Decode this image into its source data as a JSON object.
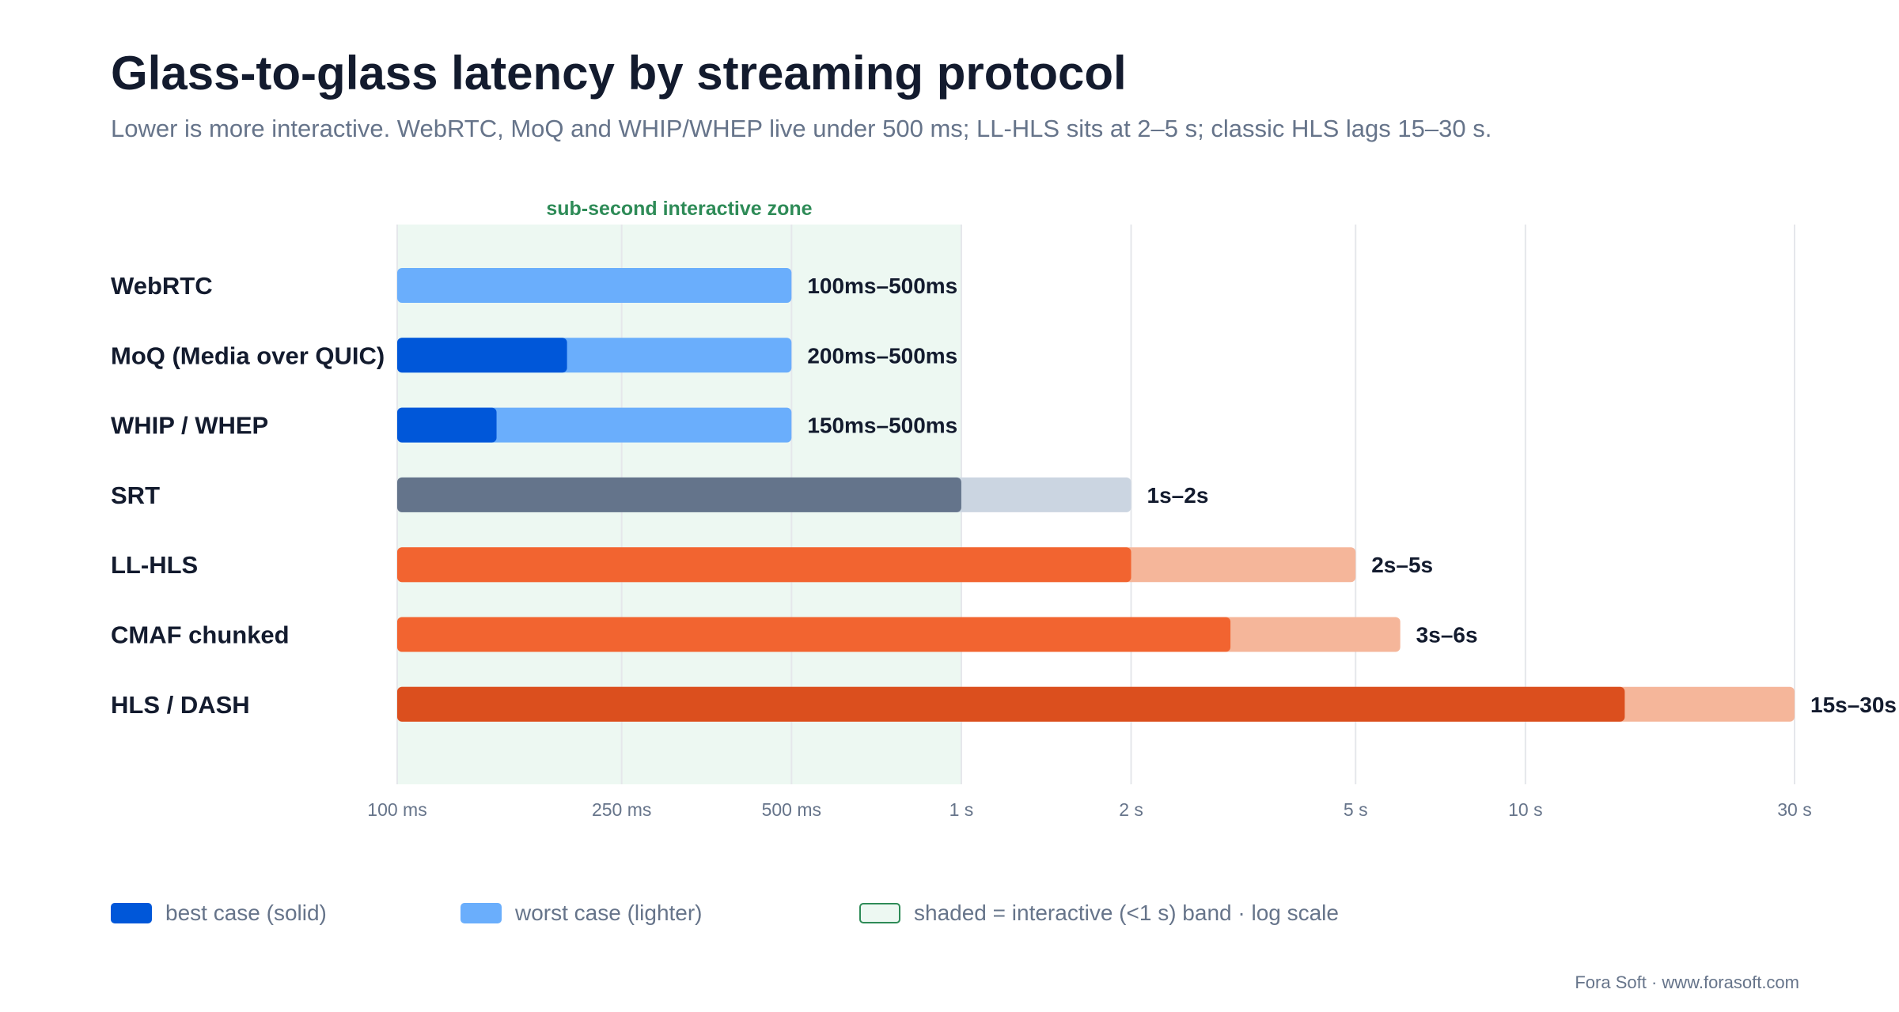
{
  "header": {
    "title": "Glass-to-glass latency by streaming protocol",
    "subtitle": "Lower is more interactive. WebRTC, MoQ and WHIP/WHEP live under 500 ms; LL-HLS sits at 2–5 s; classic HLS lags 15–30 s."
  },
  "chart_data": {
    "type": "bar",
    "orientation": "horizontal",
    "x_scale": "log",
    "xunit": "seconds",
    "xlim": [
      0.1,
      30
    ],
    "grid": "vertical",
    "annotation": "sub-second interactive zone",
    "shaded_band": [
      0.1,
      1
    ],
    "categories": [
      "WebRTC",
      "MoQ (Media over QUIC)",
      "WHIP / WHEP",
      "SRT",
      "LL-HLS",
      "CMAF chunked",
      "HLS / DASH"
    ],
    "series": [
      {
        "name": "best case (solid)",
        "values": [
          0.1,
          0.2,
          0.15,
          1,
          2,
          3,
          15
        ]
      },
      {
        "name": "worst case (lighter)",
        "values": [
          0.5,
          0.5,
          0.5,
          2,
          5,
          6,
          30
        ]
      }
    ],
    "value_labels": [
      "100ms–500ms",
      "200ms–500ms",
      "150ms–500ms",
      "1s–2s",
      "2s–5s",
      "3s–6s",
      "15s–30s"
    ],
    "colors": [
      {
        "best": "#0057d9",
        "worst": "#6aaefc"
      },
      {
        "best": "#0057d9",
        "worst": "#6aaefc"
      },
      {
        "best": "#0057d9",
        "worst": "#6aaefc"
      },
      {
        "best": "#64748b",
        "worst": "#cbd5e1"
      },
      {
        "best": "#f26430",
        "worst": "#f5b69a"
      },
      {
        "best": "#f26430",
        "worst": "#f5b69a"
      },
      {
        "best": "#db4f1e",
        "worst": "#f5b69a"
      }
    ],
    "ticks": [
      {
        "value": 0.1,
        "label": "100 ms"
      },
      {
        "value": 0.25,
        "label": "250 ms"
      },
      {
        "value": 0.5,
        "label": "500 ms"
      },
      {
        "value": 1,
        "label": "1 s"
      },
      {
        "value": 2,
        "label": "2 s"
      },
      {
        "value": 5,
        "label": "5 s"
      },
      {
        "value": 10,
        "label": "10 s"
      },
      {
        "value": 30,
        "label": "30 s"
      }
    ]
  },
  "legend": {
    "best_label": "best case (solid)",
    "worst_label": "worst case (lighter)",
    "band_label": "shaded = interactive (<1 s) band · log scale",
    "best_color": "#0057d9",
    "worst_color": "#6aaefc",
    "band_fill": "#edf8f2",
    "band_border": "#2e8b57"
  },
  "footer": {
    "credit": "Fora Soft · www.forasoft.com"
  },
  "colors": {
    "title": "#131b2e",
    "muted": "#66748a",
    "annotation": "#2e8b57",
    "grid": "#e5e7eb"
  }
}
